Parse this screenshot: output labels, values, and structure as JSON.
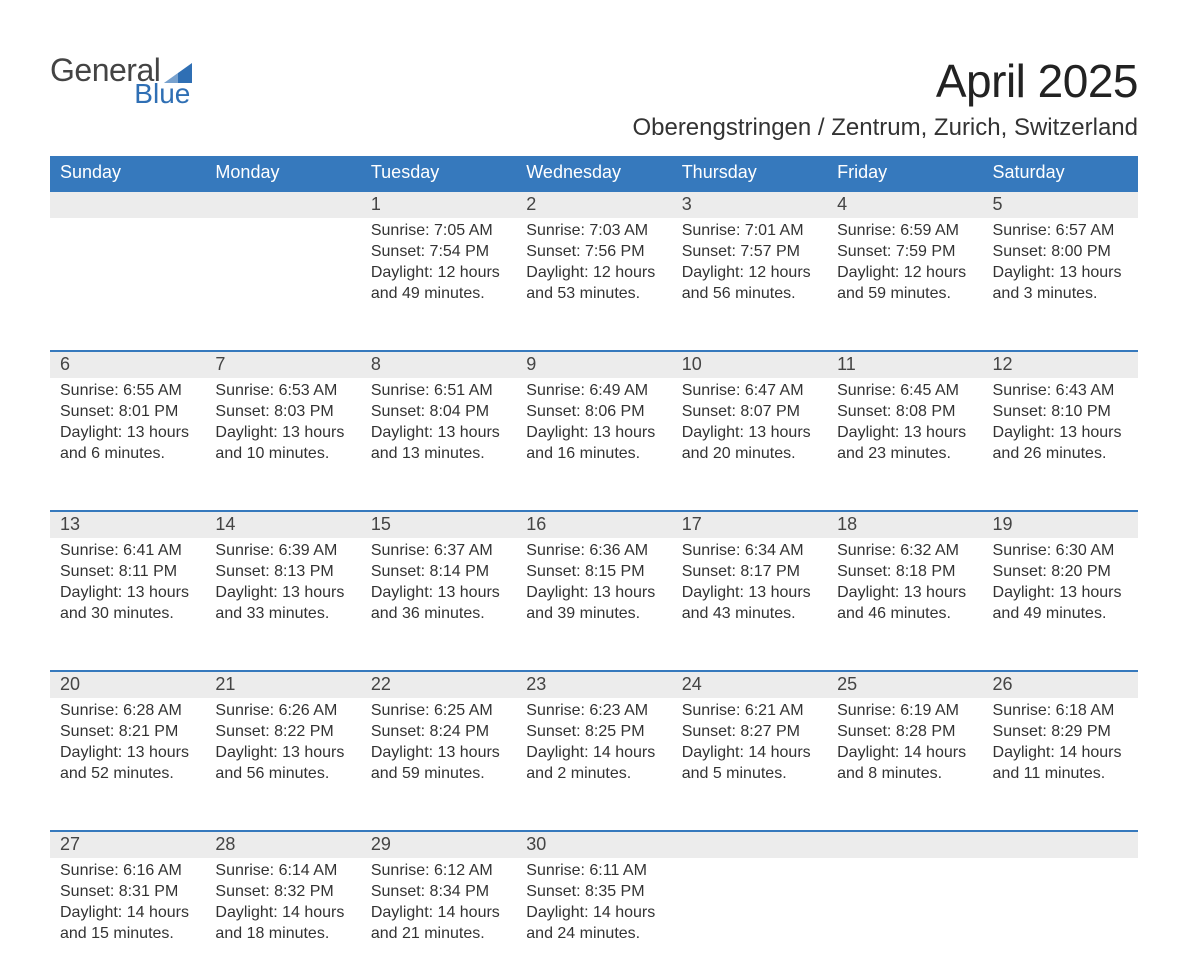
{
  "brand": {
    "name_general": "General",
    "name_blue": "Blue",
    "general_color": "#444444",
    "blue_color": "#2f6fb4",
    "icon_color": "#2f6fb4"
  },
  "title": {
    "month": "April 2025",
    "location": "Oberengstringen / Zentrum, Zurich, Switzerland"
  },
  "style": {
    "header_bg": "#3679bd",
    "header_text": "#ffffff",
    "daynum_bg": "#ececec",
    "daynum_border": "#3679bd",
    "body_text": "#333333"
  },
  "days_of_week": [
    "Sunday",
    "Monday",
    "Tuesday",
    "Wednesday",
    "Thursday",
    "Friday",
    "Saturday"
  ],
  "weeks": [
    [
      {
        "n": "",
        "lines": [
          "",
          "",
          "",
          ""
        ]
      },
      {
        "n": "",
        "lines": [
          "",
          "",
          "",
          ""
        ]
      },
      {
        "n": "1",
        "lines": [
          "Sunrise: 7:05 AM",
          "Sunset: 7:54 PM",
          "Daylight: 12 hours",
          "and 49 minutes."
        ]
      },
      {
        "n": "2",
        "lines": [
          "Sunrise: 7:03 AM",
          "Sunset: 7:56 PM",
          "Daylight: 12 hours",
          "and 53 minutes."
        ]
      },
      {
        "n": "3",
        "lines": [
          "Sunrise: 7:01 AM",
          "Sunset: 7:57 PM",
          "Daylight: 12 hours",
          "and 56 minutes."
        ]
      },
      {
        "n": "4",
        "lines": [
          "Sunrise: 6:59 AM",
          "Sunset: 7:59 PM",
          "Daylight: 12 hours",
          "and 59 minutes."
        ]
      },
      {
        "n": "5",
        "lines": [
          "Sunrise: 6:57 AM",
          "Sunset: 8:00 PM",
          "Daylight: 13 hours",
          "and 3 minutes."
        ]
      }
    ],
    [
      {
        "n": "6",
        "lines": [
          "Sunrise: 6:55 AM",
          "Sunset: 8:01 PM",
          "Daylight: 13 hours",
          "and 6 minutes."
        ]
      },
      {
        "n": "7",
        "lines": [
          "Sunrise: 6:53 AM",
          "Sunset: 8:03 PM",
          "Daylight: 13 hours",
          "and 10 minutes."
        ]
      },
      {
        "n": "8",
        "lines": [
          "Sunrise: 6:51 AM",
          "Sunset: 8:04 PM",
          "Daylight: 13 hours",
          "and 13 minutes."
        ]
      },
      {
        "n": "9",
        "lines": [
          "Sunrise: 6:49 AM",
          "Sunset: 8:06 PM",
          "Daylight: 13 hours",
          "and 16 minutes."
        ]
      },
      {
        "n": "10",
        "lines": [
          "Sunrise: 6:47 AM",
          "Sunset: 8:07 PM",
          "Daylight: 13 hours",
          "and 20 minutes."
        ]
      },
      {
        "n": "11",
        "lines": [
          "Sunrise: 6:45 AM",
          "Sunset: 8:08 PM",
          "Daylight: 13 hours",
          "and 23 minutes."
        ]
      },
      {
        "n": "12",
        "lines": [
          "Sunrise: 6:43 AM",
          "Sunset: 8:10 PM",
          "Daylight: 13 hours",
          "and 26 minutes."
        ]
      }
    ],
    [
      {
        "n": "13",
        "lines": [
          "Sunrise: 6:41 AM",
          "Sunset: 8:11 PM",
          "Daylight: 13 hours",
          "and 30 minutes."
        ]
      },
      {
        "n": "14",
        "lines": [
          "Sunrise: 6:39 AM",
          "Sunset: 8:13 PM",
          "Daylight: 13 hours",
          "and 33 minutes."
        ]
      },
      {
        "n": "15",
        "lines": [
          "Sunrise: 6:37 AM",
          "Sunset: 8:14 PM",
          "Daylight: 13 hours",
          "and 36 minutes."
        ]
      },
      {
        "n": "16",
        "lines": [
          "Sunrise: 6:36 AM",
          "Sunset: 8:15 PM",
          "Daylight: 13 hours",
          "and 39 minutes."
        ]
      },
      {
        "n": "17",
        "lines": [
          "Sunrise: 6:34 AM",
          "Sunset: 8:17 PM",
          "Daylight: 13 hours",
          "and 43 minutes."
        ]
      },
      {
        "n": "18",
        "lines": [
          "Sunrise: 6:32 AM",
          "Sunset: 8:18 PM",
          "Daylight: 13 hours",
          "and 46 minutes."
        ]
      },
      {
        "n": "19",
        "lines": [
          "Sunrise: 6:30 AM",
          "Sunset: 8:20 PM",
          "Daylight: 13 hours",
          "and 49 minutes."
        ]
      }
    ],
    [
      {
        "n": "20",
        "lines": [
          "Sunrise: 6:28 AM",
          "Sunset: 8:21 PM",
          "Daylight: 13 hours",
          "and 52 minutes."
        ]
      },
      {
        "n": "21",
        "lines": [
          "Sunrise: 6:26 AM",
          "Sunset: 8:22 PM",
          "Daylight: 13 hours",
          "and 56 minutes."
        ]
      },
      {
        "n": "22",
        "lines": [
          "Sunrise: 6:25 AM",
          "Sunset: 8:24 PM",
          "Daylight: 13 hours",
          "and 59 minutes."
        ]
      },
      {
        "n": "23",
        "lines": [
          "Sunrise: 6:23 AM",
          "Sunset: 8:25 PM",
          "Daylight: 14 hours",
          "and 2 minutes."
        ]
      },
      {
        "n": "24",
        "lines": [
          "Sunrise: 6:21 AM",
          "Sunset: 8:27 PM",
          "Daylight: 14 hours",
          "and 5 minutes."
        ]
      },
      {
        "n": "25",
        "lines": [
          "Sunrise: 6:19 AM",
          "Sunset: 8:28 PM",
          "Daylight: 14 hours",
          "and 8 minutes."
        ]
      },
      {
        "n": "26",
        "lines": [
          "Sunrise: 6:18 AM",
          "Sunset: 8:29 PM",
          "Daylight: 14 hours",
          "and 11 minutes."
        ]
      }
    ],
    [
      {
        "n": "27",
        "lines": [
          "Sunrise: 6:16 AM",
          "Sunset: 8:31 PM",
          "Daylight: 14 hours",
          "and 15 minutes."
        ]
      },
      {
        "n": "28",
        "lines": [
          "Sunrise: 6:14 AM",
          "Sunset: 8:32 PM",
          "Daylight: 14 hours",
          "and 18 minutes."
        ]
      },
      {
        "n": "29",
        "lines": [
          "Sunrise: 6:12 AM",
          "Sunset: 8:34 PM",
          "Daylight: 14 hours",
          "and 21 minutes."
        ]
      },
      {
        "n": "30",
        "lines": [
          "Sunrise: 6:11 AM",
          "Sunset: 8:35 PM",
          "Daylight: 14 hours",
          "and 24 minutes."
        ]
      },
      {
        "n": "",
        "lines": [
          "",
          "",
          "",
          ""
        ]
      },
      {
        "n": "",
        "lines": [
          "",
          "",
          "",
          ""
        ]
      },
      {
        "n": "",
        "lines": [
          "",
          "",
          "",
          ""
        ]
      }
    ]
  ]
}
